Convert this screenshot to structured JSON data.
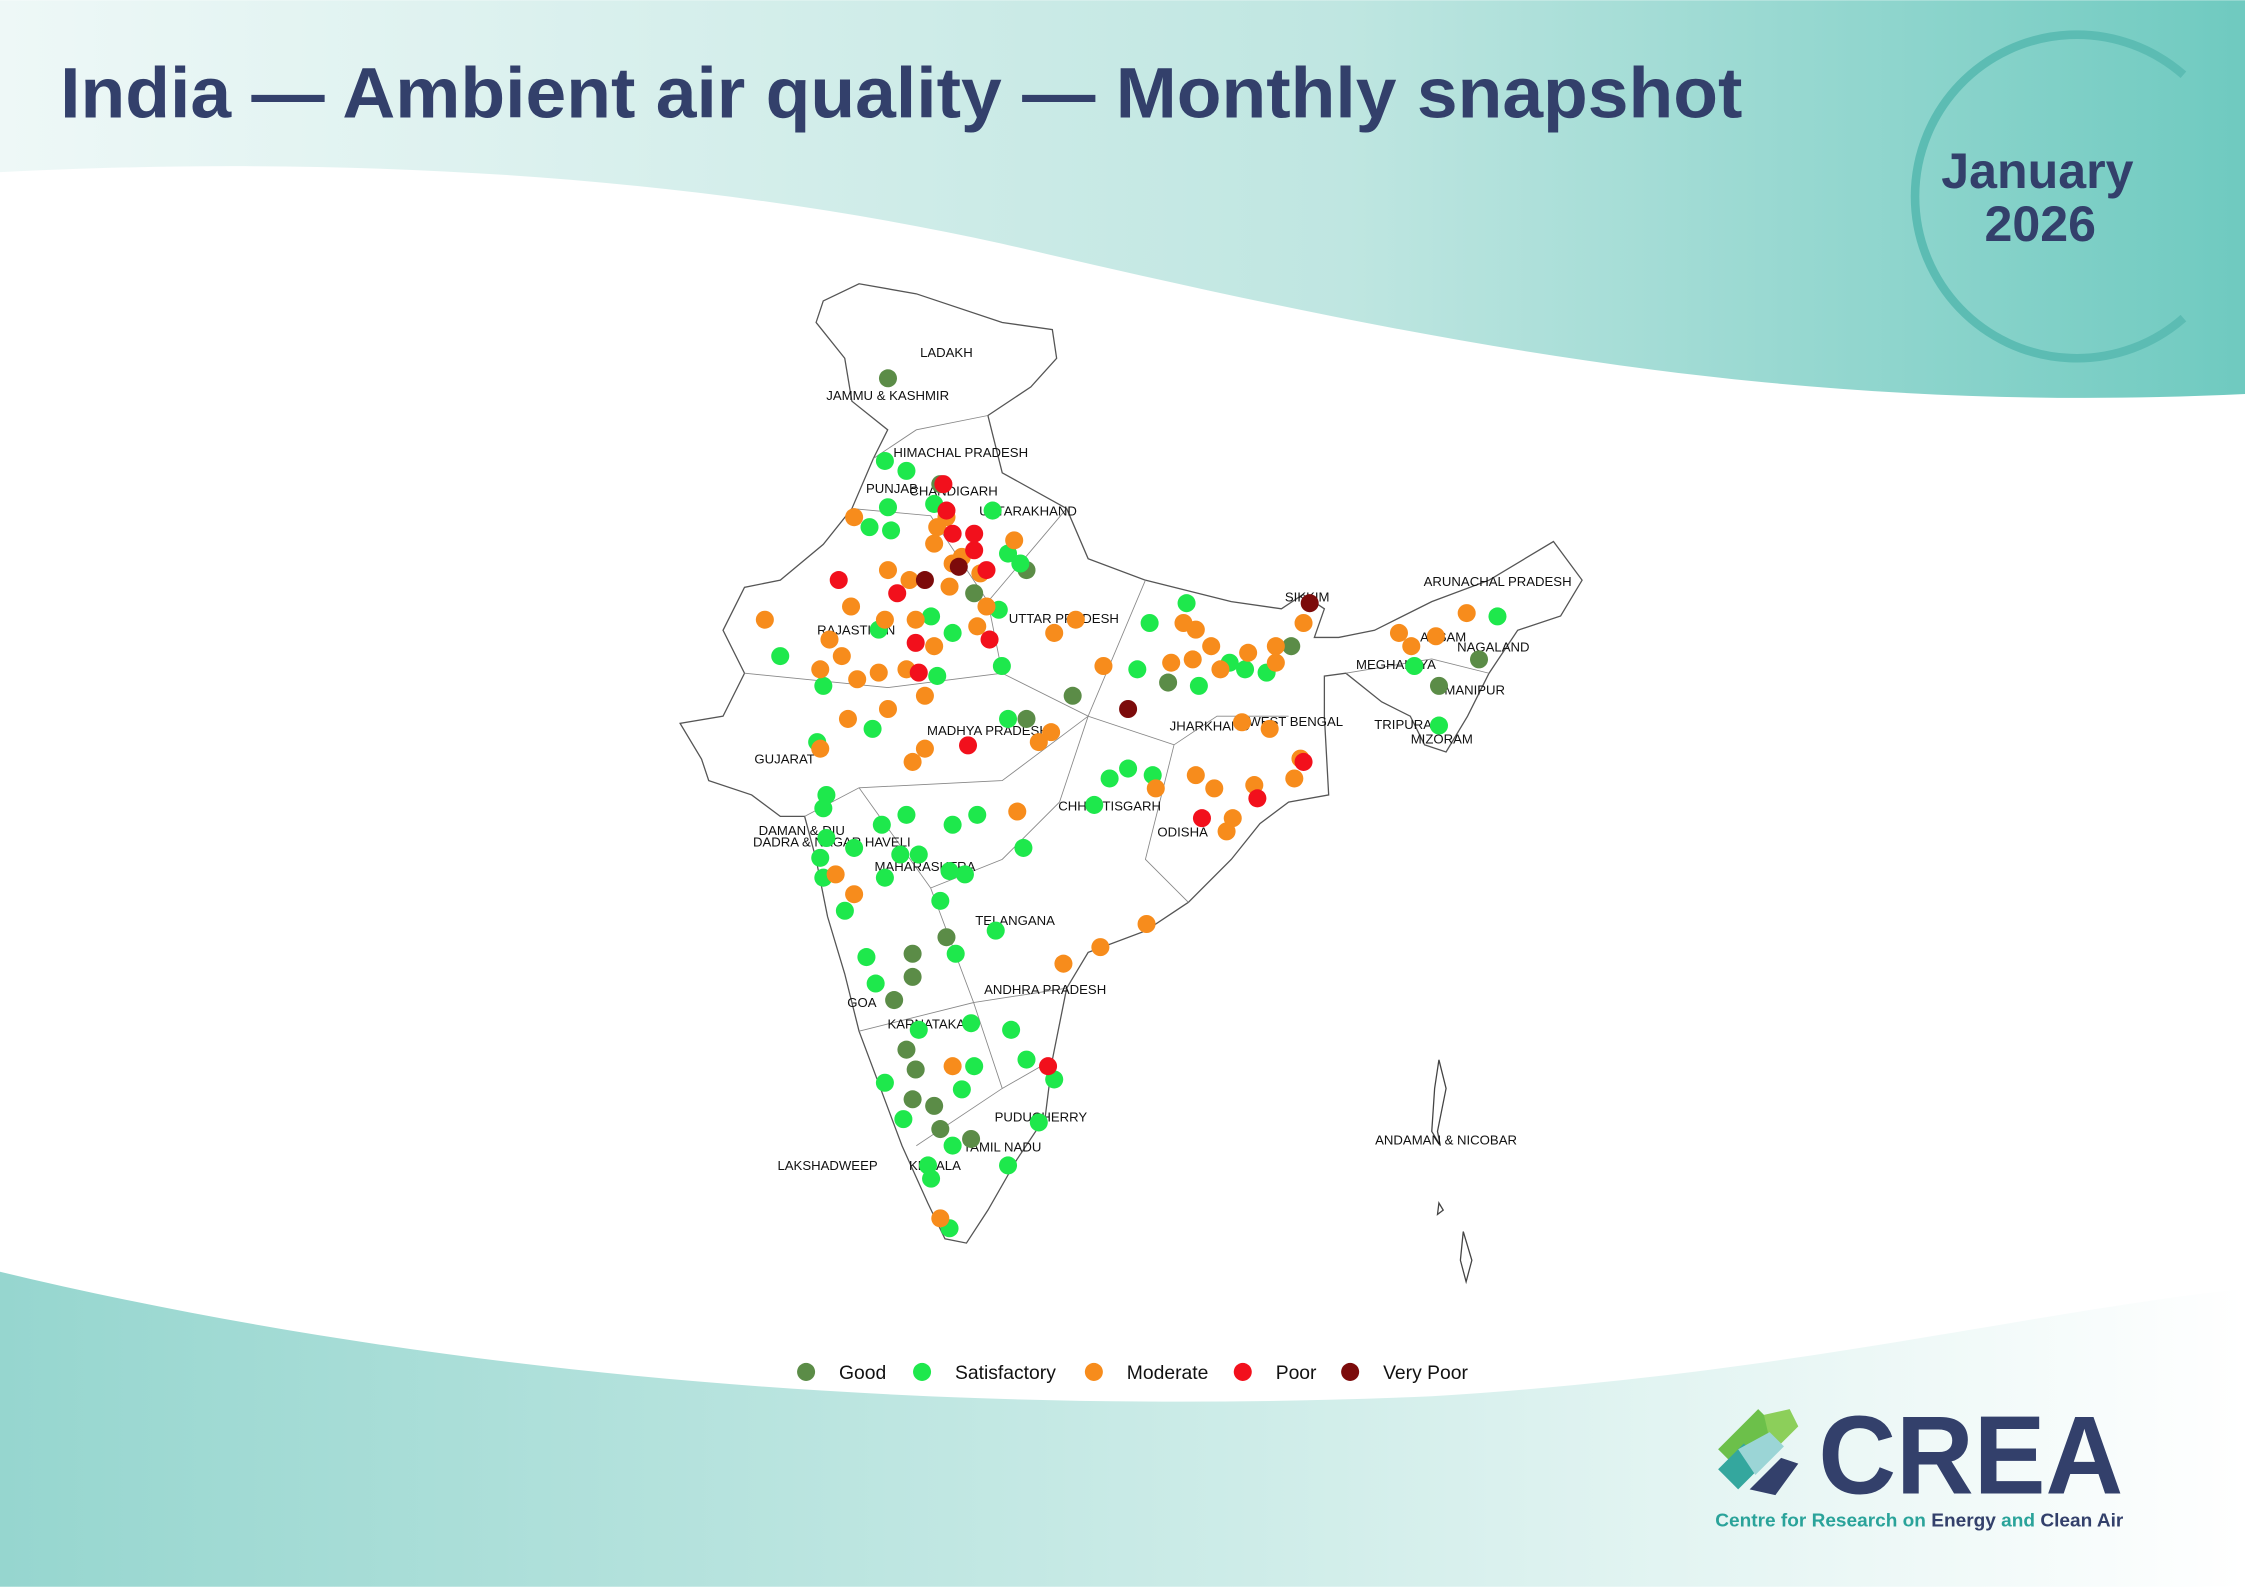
{
  "header": {
    "title": "India — Ambient air quality — Monthly snapshot",
    "month": "January",
    "year": "2026"
  },
  "map": {
    "type": "map",
    "regions": [
      "LADAKH",
      "JAMMU & KASHMIR",
      "HIMACHAL PRADESH",
      "PUNJAB",
      "CHANDIGARH",
      "UTTARAKHAND",
      "RAJASTHAN",
      "UTTAR PRADESH",
      "MADHYA PRADESH",
      "GUJARAT",
      "DAMAN & DIU",
      "DADRA & NAGAR HAVELI",
      "MAHARASHTRA",
      "CHHATTISGARH",
      "ODISHA",
      "JHARKHAND",
      "WEST BENGAL",
      "SIKKIM",
      "ARUNACHAL PRADESH",
      "ASSAM",
      "MEGHALAYA",
      "NAGALAND",
      "MANIPUR",
      "TRIPURA",
      "MIZORAM",
      "TELANGANA",
      "ANDHRA PRADESH",
      "GOA",
      "KARNATAKA",
      "TAMIL NADU",
      "PUDUCHERRY",
      "KERALA",
      "LAKSHADWEEP",
      "ANDAMAN & NICOBAR"
    ],
    "levels": [
      {
        "name": "Good",
        "color": "#5b8c47",
        "stations": [
          [
            74.8,
            34.1
          ],
          [
            76.5,
            30.9
          ],
          [
            79.3,
            28.3
          ],
          [
            77.6,
            27.6
          ],
          [
            80.8,
            24.5
          ],
          [
            79.3,
            23.8
          ],
          [
            83.9,
            24.9
          ],
          [
            87.9,
            26.0
          ],
          [
            94.0,
            25.6
          ],
          [
            92.7,
            24.8
          ],
          [
            75.6,
            16.7
          ],
          [
            75.6,
            16.0
          ],
          [
            76.7,
            17.2
          ],
          [
            75.0,
            15.3
          ],
          [
            75.4,
            13.8
          ],
          [
            75.7,
            13.2
          ],
          [
            75.6,
            12.3
          ],
          [
            76.3,
            12.1
          ],
          [
            76.5,
            11.4
          ],
          [
            77.5,
            11.1
          ]
        ]
      },
      {
        "name": "Satisfactory",
        "color": "#1ee84c",
        "stations": [
          [
            74.7,
            31.6
          ],
          [
            75.4,
            31.3
          ],
          [
            74.8,
            30.2
          ],
          [
            74.2,
            29.6
          ],
          [
            74.9,
            29.5
          ],
          [
            76.3,
            30.3
          ],
          [
            78.2,
            30.1
          ],
          [
            78.7,
            28.8
          ],
          [
            78.4,
            27.1
          ],
          [
            76.2,
            26.9
          ],
          [
            76.9,
            26.4
          ],
          [
            74.5,
            26.5
          ],
          [
            71.3,
            25.7
          ],
          [
            72.7,
            24.8
          ],
          [
            76.4,
            25.1
          ],
          [
            78.5,
            25.4
          ],
          [
            78.7,
            23.8
          ],
          [
            74.3,
            23.5
          ],
          [
            72.5,
            23.1
          ],
          [
            72.8,
            21.5
          ],
          [
            72.7,
            21.1
          ],
          [
            72.8,
            20.2
          ],
          [
            72.6,
            19.6
          ],
          [
            72.7,
            19.0
          ],
          [
            73.4,
            18.0
          ],
          [
            73.7,
            19.9
          ],
          [
            74.6,
            20.6
          ],
          [
            75.4,
            20.9
          ],
          [
            75.2,
            19.7
          ],
          [
            75.8,
            19.7
          ],
          [
            76.9,
            20.6
          ],
          [
            77.7,
            20.9
          ],
          [
            76.8,
            19.2
          ],
          [
            77.3,
            19.1
          ],
          [
            76.5,
            18.3
          ],
          [
            74.7,
            19.0
          ],
          [
            79.2,
            19.9
          ],
          [
            78.3,
            17.4
          ],
          [
            77.0,
            16.7
          ],
          [
            74.1,
            16.6
          ],
          [
            74.4,
            15.8
          ],
          [
            75.8,
            14.4
          ],
          [
            77.5,
            14.6
          ],
          [
            78.8,
            14.4
          ],
          [
            77.6,
            13.3
          ],
          [
            79.3,
            13.5
          ],
          [
            80.2,
            12.9
          ],
          [
            77.2,
            12.6
          ],
          [
            74.7,
            12.8
          ],
          [
            75.3,
            11.7
          ],
          [
            76.9,
            10.9
          ],
          [
            76.1,
            10.3
          ],
          [
            76.2,
            9.9
          ],
          [
            78.7,
            10.3
          ],
          [
            76.8,
            8.4
          ],
          [
            79.7,
            11.6
          ],
          [
            82.0,
            22.0
          ],
          [
            82.6,
            22.3
          ],
          [
            83.4,
            22.1
          ],
          [
            81.5,
            21.2
          ],
          [
            82.9,
            25.3
          ],
          [
            83.3,
            26.7
          ],
          [
            84.5,
            27.3
          ],
          [
            84.9,
            24.8
          ],
          [
            85.9,
            25.5
          ],
          [
            86.4,
            25.3
          ],
          [
            87.1,
            25.2
          ],
          [
            91.9,
            25.4
          ],
          [
            94.6,
            26.9
          ],
          [
            92.7,
            23.6
          ],
          [
            79.1,
            28.5
          ]
        ]
      },
      {
        "name": "Moderate",
        "color": "#f78c1c",
        "stations": [
          [
            73.7,
            29.9
          ],
          [
            74.8,
            28.3
          ],
          [
            75.5,
            28.0
          ],
          [
            76.3,
            29.1
          ],
          [
            76.7,
            29.9
          ],
          [
            76.9,
            28.5
          ],
          [
            77.2,
            28.7
          ],
          [
            77.8,
            28.2
          ],
          [
            78.9,
            29.2
          ],
          [
            70.8,
            26.8
          ],
          [
            73.6,
            27.2
          ],
          [
            74.7,
            26.8
          ],
          [
            75.7,
            26.8
          ],
          [
            72.9,
            26.2
          ],
          [
            73.3,
            25.7
          ],
          [
            72.6,
            25.3
          ],
          [
            73.8,
            25.0
          ],
          [
            74.5,
            25.2
          ],
          [
            75.4,
            25.3
          ],
          [
            76.3,
            26.0
          ],
          [
            77.7,
            26.6
          ],
          [
            78.0,
            27.2
          ],
          [
            73.5,
            23.8
          ],
          [
            74.8,
            24.1
          ],
          [
            76.0,
            24.5
          ],
          [
            72.6,
            22.9
          ],
          [
            76.0,
            22.9
          ],
          [
            75.6,
            22.5
          ],
          [
            80.2,
            26.4
          ],
          [
            80.9,
            26.8
          ],
          [
            81.8,
            25.4
          ],
          [
            79.0,
            21.0
          ],
          [
            80.1,
            23.4
          ],
          [
            79.7,
            23.1
          ],
          [
            73.7,
            18.5
          ],
          [
            73.1,
            19.1
          ],
          [
            76.9,
            13.3
          ],
          [
            76.5,
            8.7
          ],
          [
            80.5,
            16.4
          ],
          [
            81.7,
            16.9
          ],
          [
            83.2,
            17.6
          ],
          [
            84.4,
            26.7
          ],
          [
            84.8,
            26.5
          ],
          [
            85.3,
            26.0
          ],
          [
            84.7,
            25.6
          ],
          [
            84.0,
            25.5
          ],
          [
            85.6,
            25.3
          ],
          [
            86.5,
            25.8
          ],
          [
            87.4,
            26.0
          ],
          [
            87.4,
            25.5
          ],
          [
            88.3,
            26.7
          ],
          [
            93.6,
            27.0
          ],
          [
            91.4,
            26.4
          ],
          [
            91.8,
            26.0
          ],
          [
            92.6,
            26.3
          ],
          [
            86.3,
            23.7
          ],
          [
            87.2,
            23.5
          ],
          [
            84.8,
            22.1
          ],
          [
            85.4,
            21.7
          ],
          [
            86.0,
            20.8
          ],
          [
            85.8,
            20.4
          ],
          [
            83.5,
            21.7
          ],
          [
            86.7,
            21.8
          ],
          [
            88.0,
            22.0
          ],
          [
            88.2,
            22.6
          ],
          [
            76.4,
            29.6
          ],
          [
            76.8,
            27.8
          ]
        ]
      },
      {
        "name": "Poor",
        "color": "#f2101c",
        "stations": [
          [
            76.6,
            30.9
          ],
          [
            76.9,
            29.4
          ],
          [
            77.6,
            29.4
          ],
          [
            77.6,
            28.9
          ],
          [
            73.2,
            28.0
          ],
          [
            75.1,
            27.6
          ],
          [
            75.7,
            26.1
          ],
          [
            75.8,
            25.2
          ],
          [
            78.1,
            26.2
          ],
          [
            77.4,
            23.0
          ],
          [
            85.0,
            20.8
          ],
          [
            86.8,
            21.4
          ],
          [
            88.3,
            22.5
          ],
          [
            80.0,
            13.3
          ],
          [
            76.7,
            30.1
          ],
          [
            78.0,
            28.3
          ]
        ]
      },
      {
        "name": "Very Poor",
        "color": "#7c0b0b",
        "stations": [
          [
            76.0,
            28.0
          ],
          [
            77.1,
            28.4
          ],
          [
            82.6,
            24.1
          ],
          [
            88.5,
            27.3
          ]
        ]
      }
    ]
  },
  "logo": {
    "name": "CREA",
    "tagline": [
      "Centre for Research on",
      "Energy",
      "and",
      "Clean Air"
    ]
  }
}
